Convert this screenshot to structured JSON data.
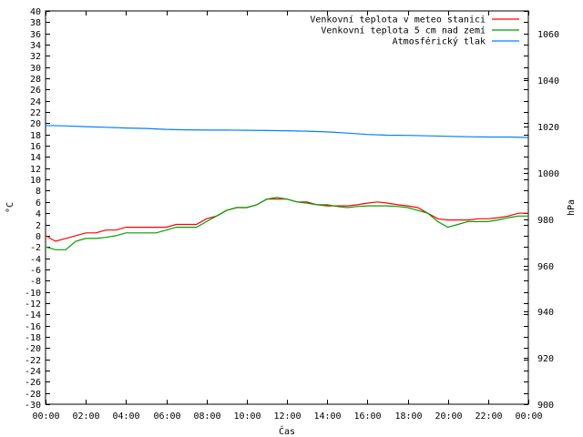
{
  "chart_data": {
    "type": "line",
    "xlabel": "Čas",
    "ylabel": "°C",
    "y2label": "hPa",
    "x_ticks": [
      "00:00",
      "02:00",
      "04:00",
      "06:00",
      "08:00",
      "10:00",
      "12:00",
      "14:00",
      "16:00",
      "18:00",
      "20:00",
      "22:00",
      "00:00"
    ],
    "ylim": [
      -30,
      40
    ],
    "y_ticks": [
      40,
      38,
      36,
      34,
      32,
      30,
      28,
      26,
      24,
      22,
      20,
      18,
      16,
      14,
      12,
      10,
      8,
      6,
      4,
      2,
      0,
      -2,
      -4,
      -6,
      -8,
      -10,
      -12,
      -14,
      -16,
      -18,
      -20,
      -22,
      -24,
      -26,
      -28,
      -30
    ],
    "y2lim": [
      900,
      1070
    ],
    "y2_ticks": [
      1060,
      1040,
      1020,
      1000,
      980,
      960,
      940,
      920,
      900
    ],
    "grid": false,
    "legend_position": "top-right",
    "series": [
      {
        "name": "Venkovní teplota v meteo stanici",
        "color": "#ff0000",
        "axis": "y",
        "x": [
          0,
          0.5,
          1,
          1.5,
          2,
          2.5,
          3,
          3.5,
          4,
          4.5,
          5,
          5.5,
          6,
          6.5,
          7,
          7.5,
          8,
          8.5,
          9,
          9.5,
          10,
          10.5,
          11,
          11.5,
          12,
          12.5,
          13,
          13.5,
          14,
          14.5,
          15,
          15.5,
          16,
          16.5,
          17,
          17.5,
          18,
          18.5,
          19,
          19.5,
          20,
          20.5,
          21,
          21.5,
          22,
          22.5,
          23,
          23.5,
          24
        ],
        "values": [
          0,
          -1,
          -0.5,
          0,
          0.5,
          0.5,
          1,
          1,
          1.5,
          1.5,
          1.5,
          1.5,
          1.5,
          2,
          2,
          2,
          3,
          3.5,
          4.5,
          5,
          5,
          5.5,
          6.5,
          6.5,
          6.5,
          6,
          6,
          5.5,
          5.3,
          5.3,
          5.3,
          5.5,
          5.8,
          6,
          5.8,
          5.5,
          5.3,
          5,
          4,
          3,
          2.8,
          2.8,
          2.8,
          3,
          3,
          3.2,
          3.5,
          4,
          4
        ]
      },
      {
        "name": "Venkovní teplota 5 cm nad zemí",
        "color": "#00a000",
        "axis": "y",
        "x": [
          0,
          0.5,
          1,
          1.5,
          2,
          2.5,
          3,
          3.5,
          4,
          4.5,
          5,
          5.5,
          6,
          6.5,
          7,
          7.5,
          8,
          8.5,
          9,
          9.5,
          10,
          10.5,
          11,
          11.5,
          12,
          12.5,
          13,
          13.5,
          14,
          14.5,
          15,
          15.5,
          16,
          16.5,
          17,
          17.5,
          18,
          18.5,
          19,
          19.5,
          20,
          20.5,
          21,
          21.5,
          22,
          22.5,
          23,
          23.5,
          24
        ],
        "values": [
          -2,
          -2.5,
          -2.5,
          -1,
          -0.5,
          -0.5,
          -0.3,
          0,
          0.5,
          0.5,
          0.5,
          0.5,
          1,
          1.5,
          1.5,
          1.5,
          2.5,
          3.5,
          4.5,
          5,
          5,
          5.5,
          6.5,
          6.8,
          6.5,
          6,
          5.8,
          5.5,
          5.5,
          5.2,
          5,
          5.2,
          5.3,
          5.3,
          5.3,
          5.2,
          5,
          4.5,
          4,
          2.5,
          1.5,
          2,
          2.5,
          2.5,
          2.5,
          2.8,
          3.2,
          3.5,
          3.5
        ]
      },
      {
        "name": "Atmosférický tlak",
        "color": "#0080ff",
        "axis": "y2",
        "x": [
          0,
          1,
          2,
          3,
          4,
          5,
          6,
          7,
          8,
          9,
          10,
          11,
          12,
          13,
          14,
          15,
          16,
          17,
          18,
          19,
          20,
          21,
          22,
          23,
          24
        ],
        "values": [
          1020.5,
          1020.3,
          1020,
          1019.7,
          1019.4,
          1019.2,
          1018.8,
          1018.6,
          1018.5,
          1018.5,
          1018.4,
          1018.3,
          1018.2,
          1018,
          1017.7,
          1017.2,
          1016.6,
          1016.3,
          1016.2,
          1016,
          1015.8,
          1015.6,
          1015.5,
          1015.5,
          1015.3
        ]
      }
    ]
  }
}
